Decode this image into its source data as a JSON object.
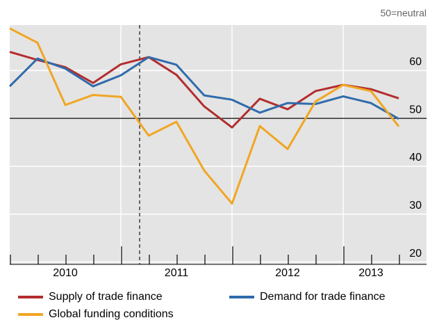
{
  "chart_data": {
    "type": "line",
    "annotation": "50=neutral",
    "categories": [
      null,
      null,
      "2010",
      null,
      null,
      null,
      "2011",
      null,
      null,
      null,
      "2012",
      null,
      null,
      "2013",
      null
    ],
    "series": [
      {
        "name": "Supply of trade finance",
        "color": "#b32d2e",
        "values": [
          63.9,
          62.2,
          60.7,
          57.4,
          61.3,
          62.8,
          59.1,
          52.5,
          48.1,
          54.1,
          51.9,
          55.7,
          57.0,
          56.1,
          54.2
        ]
      },
      {
        "name": "Demand for trade finance",
        "color": "#2f6bac",
        "values": [
          56.7,
          62.5,
          60.4,
          56.7,
          59.0,
          62.8,
          61.2,
          54.8,
          53.9,
          51.2,
          53.2,
          53.0,
          54.6,
          53.2,
          49.9
        ]
      },
      {
        "name": "Global funding conditions",
        "color": "#f0a623",
        "values": [
          68.8,
          65.8,
          52.8,
          54.9,
          54.5,
          46.4,
          49.3,
          39.1,
          32.2,
          48.4,
          43.6,
          53.5,
          57.0,
          55.7,
          48.3
        ]
      }
    ],
    "ylim": [
      19.5,
      69.5
    ],
    "yticks": [
      20,
      30,
      40,
      50,
      60
    ],
    "reference_line": 50,
    "grid": true
  }
}
